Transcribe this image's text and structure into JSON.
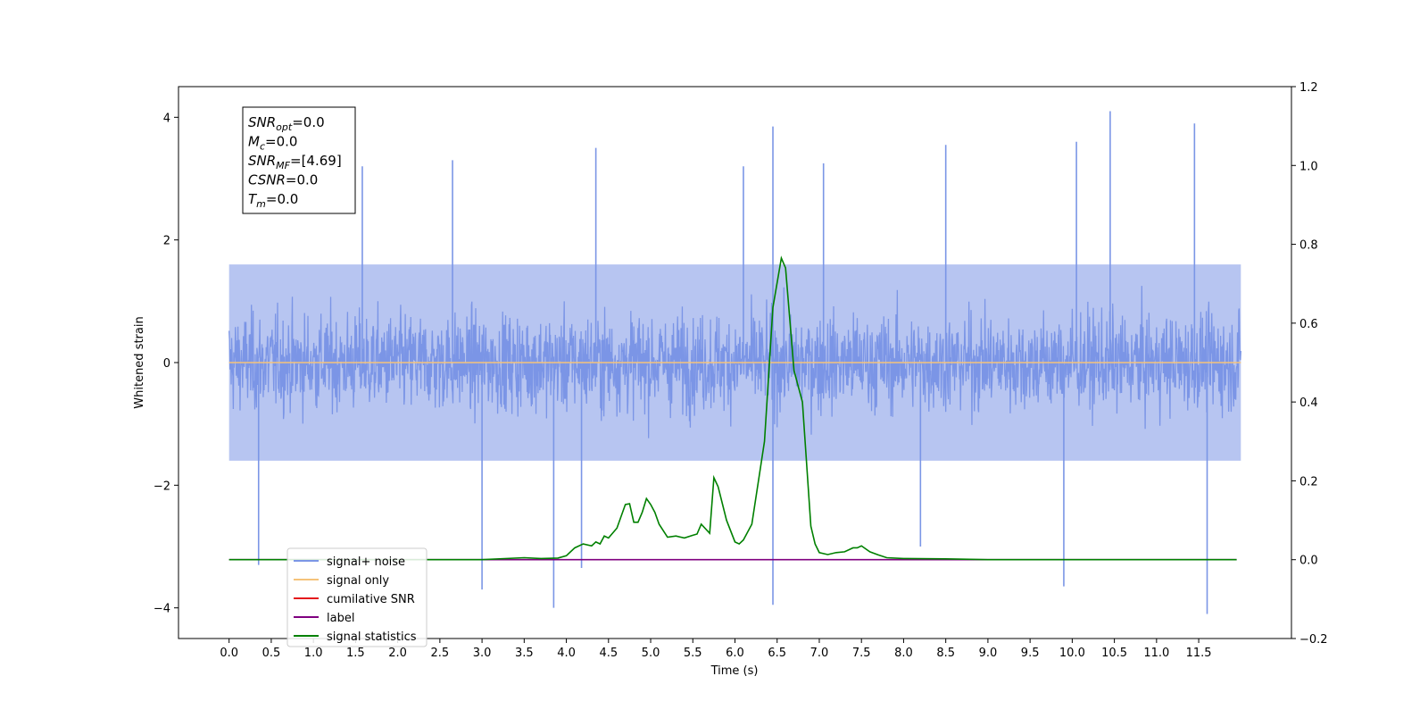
{
  "chart_data": {
    "type": "line",
    "title": "",
    "xlabel": "Time (s)",
    "ylabel": "Whitened strain",
    "xlim": [
      -0.6,
      12.6
    ],
    "ylim": [
      -4.5,
      4.5
    ],
    "y2lim": [
      -0.2,
      1.2
    ],
    "x_ticks": [
      0.0,
      0.5,
      1.0,
      1.5,
      2.0,
      2.5,
      3.0,
      3.5,
      4.0,
      4.5,
      5.0,
      5.5,
      6.0,
      6.5,
      7.0,
      7.5,
      8.0,
      8.5,
      9.0,
      9.5,
      10.0,
      10.5,
      11.0,
      11.5
    ],
    "x_tick_labels": [
      "0.0",
      "0.5",
      "1.0",
      "1.5",
      "2.0",
      "2.5",
      "3.0",
      "3.5",
      "4.0",
      "4.5",
      "5.0",
      "5.5",
      "6.0",
      "6.5",
      "7.0",
      "7.5",
      "8.0",
      "8.5",
      "9.0",
      "9.5",
      "10.0",
      "10.5",
      "11.0",
      "11.5"
    ],
    "y_ticks": [
      -4,
      -2,
      0,
      2,
      4
    ],
    "y_tick_labels": [
      "−4",
      "−2",
      "0",
      "2",
      "4"
    ],
    "y2_ticks": [
      -0.2,
      0.0,
      0.2,
      0.4,
      0.6,
      0.8,
      1.0,
      1.2
    ],
    "y2_tick_labels": [
      "−0.2",
      "0.0",
      "0.2",
      "0.4",
      "0.6",
      "0.8",
      "1.0",
      "1.2"
    ],
    "grid": false,
    "legend_position": "bottom-left",
    "annotation": {
      "lines": [
        {
          "base": "SNR",
          "sub": "opt",
          "rest": "=0.0"
        },
        {
          "base": "M",
          "sub": "c",
          "rest": "=0.0"
        },
        {
          "base": "SNR",
          "sub": "MF",
          "rest": "=[4.69]"
        },
        {
          "base": "CSNR",
          "sub": "",
          "rest": "=0.0"
        },
        {
          "base": "T",
          "sub": "m",
          "rest": "=0.0"
        }
      ]
    },
    "series": [
      {
        "name": "signal+ noise",
        "color": "#7b96e6",
        "axis": "left",
        "style": "noise",
        "x_range": [
          0.0,
          12.0
        ],
        "noise_band": [
          -1.6,
          1.6
        ],
        "peaks": [
          {
            "x": 0.35,
            "y": -3.3
          },
          {
            "x": 1.58,
            "y": 3.2
          },
          {
            "x": 2.65,
            "y": 3.3
          },
          {
            "x": 3.0,
            "y": -3.7
          },
          {
            "x": 3.85,
            "y": -4.0
          },
          {
            "x": 4.35,
            "y": 3.5
          },
          {
            "x": 6.45,
            "y": 3.85
          },
          {
            "x": 6.45,
            "y": -3.95
          },
          {
            "x": 7.05,
            "y": 3.25
          },
          {
            "x": 8.2,
            "y": -3.0
          },
          {
            "x": 8.5,
            "y": 3.55
          },
          {
            "x": 9.9,
            "y": -3.65
          },
          {
            "x": 10.05,
            "y": 3.6
          },
          {
            "x": 10.45,
            "y": 4.1
          },
          {
            "x": 11.45,
            "y": 3.9
          },
          {
            "x": 11.6,
            "y": -4.1
          },
          {
            "x": 4.18,
            "y": -3.35
          },
          {
            "x": 6.1,
            "y": 3.2
          }
        ]
      },
      {
        "name": "signal only",
        "color": "#f5c37a",
        "axis": "left",
        "x": [
          0.0,
          12.0
        ],
        "y": [
          0.0,
          0.0
        ]
      },
      {
        "name": "cumilative SNR",
        "color": "#e41a1c",
        "axis": "right",
        "x": [],
        "y": []
      },
      {
        "name": "label",
        "color": "#800080",
        "axis": "right",
        "x": [
          0.0,
          11.95
        ],
        "y": [
          0.0,
          0.0
        ]
      },
      {
        "name": "signal statistics",
        "color": "#008000",
        "axis": "right",
        "x": [
          0.0,
          3.0,
          3.5,
          3.7,
          3.9,
          4.0,
          4.1,
          4.2,
          4.3,
          4.35,
          4.4,
          4.45,
          4.5,
          4.6,
          4.7,
          4.75,
          4.8,
          4.85,
          4.9,
          4.95,
          5.0,
          5.05,
          5.1,
          5.2,
          5.3,
          5.4,
          5.5,
          5.55,
          5.6,
          5.7,
          5.75,
          5.8,
          5.9,
          6.0,
          6.05,
          6.1,
          6.2,
          6.35,
          6.45,
          6.55,
          6.6,
          6.7,
          6.8,
          6.9,
          6.95,
          7.0,
          7.1,
          7.2,
          7.3,
          7.4,
          7.45,
          7.5,
          7.6,
          7.7,
          7.8,
          8.0,
          8.5,
          9.0,
          11.95
        ],
        "y": [
          0.0,
          0.0,
          0.005,
          0.003,
          0.004,
          0.01,
          0.03,
          0.04,
          0.035,
          0.045,
          0.04,
          0.06,
          0.055,
          0.08,
          0.14,
          0.142,
          0.095,
          0.095,
          0.12,
          0.155,
          0.14,
          0.12,
          0.09,
          0.057,
          0.06,
          0.055,
          0.062,
          0.065,
          0.09,
          0.067,
          0.208,
          0.185,
          0.1,
          0.045,
          0.04,
          0.05,
          0.09,
          0.3,
          0.64,
          0.765,
          0.74,
          0.48,
          0.4,
          0.085,
          0.04,
          0.018,
          0.013,
          0.018,
          0.02,
          0.03,
          0.03,
          0.035,
          0.02,
          0.012,
          0.005,
          0.003,
          0.002,
          0.0,
          0.0
        ]
      }
    ]
  }
}
